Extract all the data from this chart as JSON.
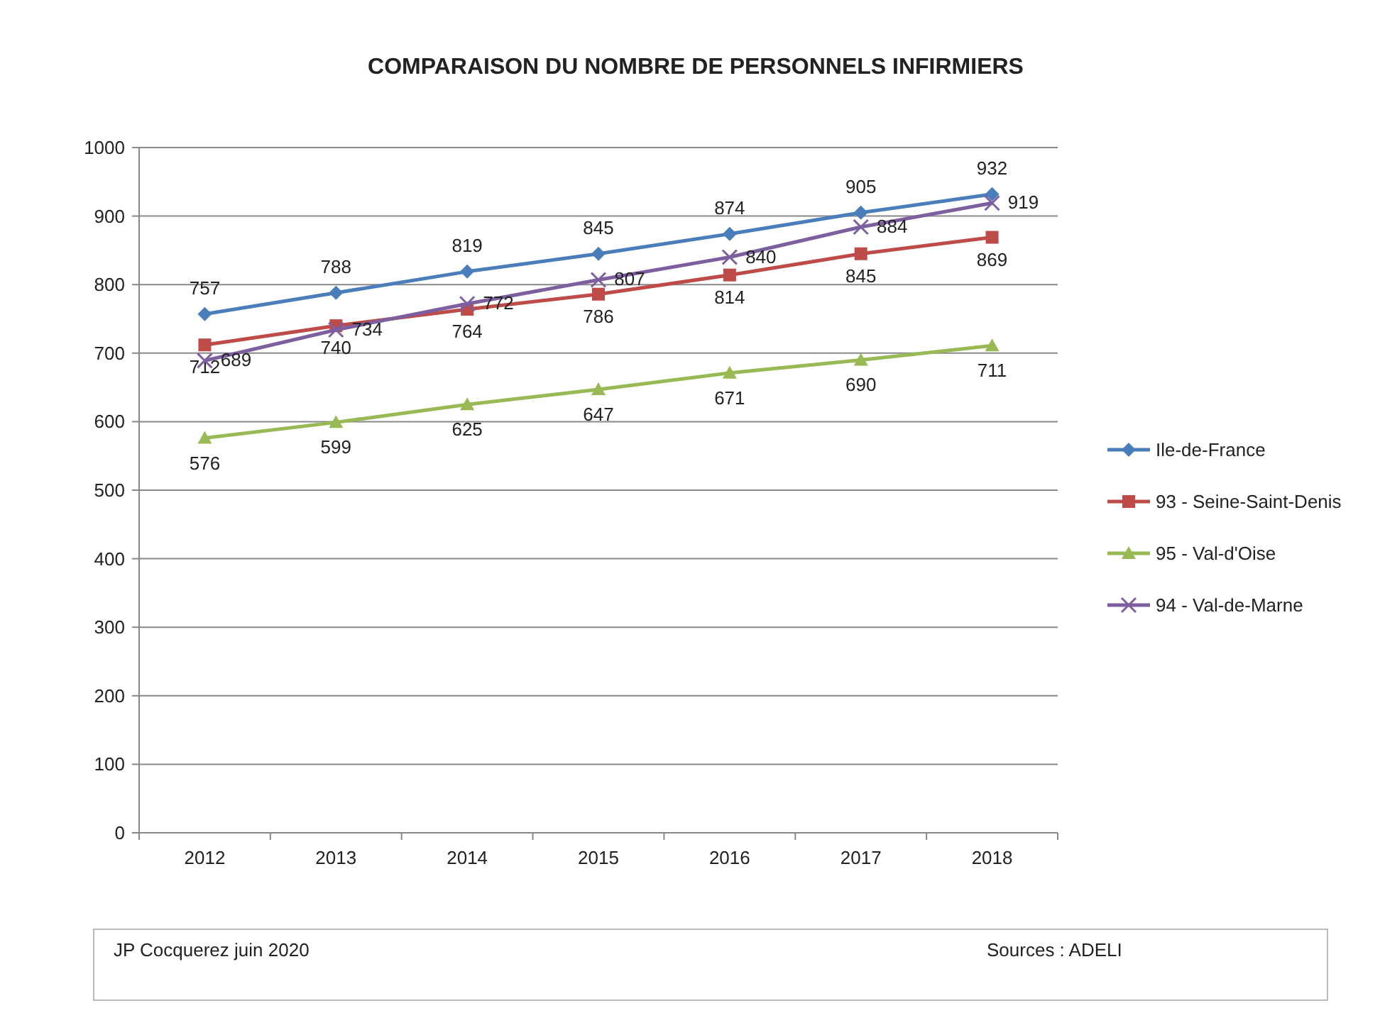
{
  "chart_data": {
    "type": "line",
    "title": "COMPARAISON DU NOMBRE DE PERSONNELS INFIRMIERS",
    "categories": [
      "2012",
      "2013",
      "2014",
      "2015",
      "2016",
      "2017",
      "2018"
    ],
    "series": [
      {
        "name": "Ile-de-France",
        "color": "#4a7ebb",
        "marker": "diamond",
        "values": [
          757,
          788,
          819,
          845,
          874,
          905,
          932
        ]
      },
      {
        "name": "93 - Seine-Saint-Denis",
        "color": "#be4b48",
        "marker": "square",
        "values": [
          712,
          740,
          764,
          786,
          814,
          845,
          869
        ]
      },
      {
        "name": "95 - Val-d'Oise",
        "color": "#98b954",
        "marker": "triangle",
        "values": [
          576,
          599,
          625,
          647,
          671,
          690,
          711
        ]
      },
      {
        "name": "94 - Val-de-Marne",
        "color": "#7d5fa0",
        "marker": "cross",
        "values": [
          689,
          734,
          772,
          807,
          840,
          884,
          919
        ]
      }
    ],
    "ylim": [
      0,
      1000
    ],
    "yticks": [
      0,
      100,
      200,
      300,
      400,
      500,
      600,
      700,
      800,
      900,
      1000
    ],
    "grid": "y",
    "legend": "right",
    "data_labels": true,
    "annotations": [
      "JP Cocquerez   juin 2020",
      "Sources : ADELI"
    ]
  }
}
